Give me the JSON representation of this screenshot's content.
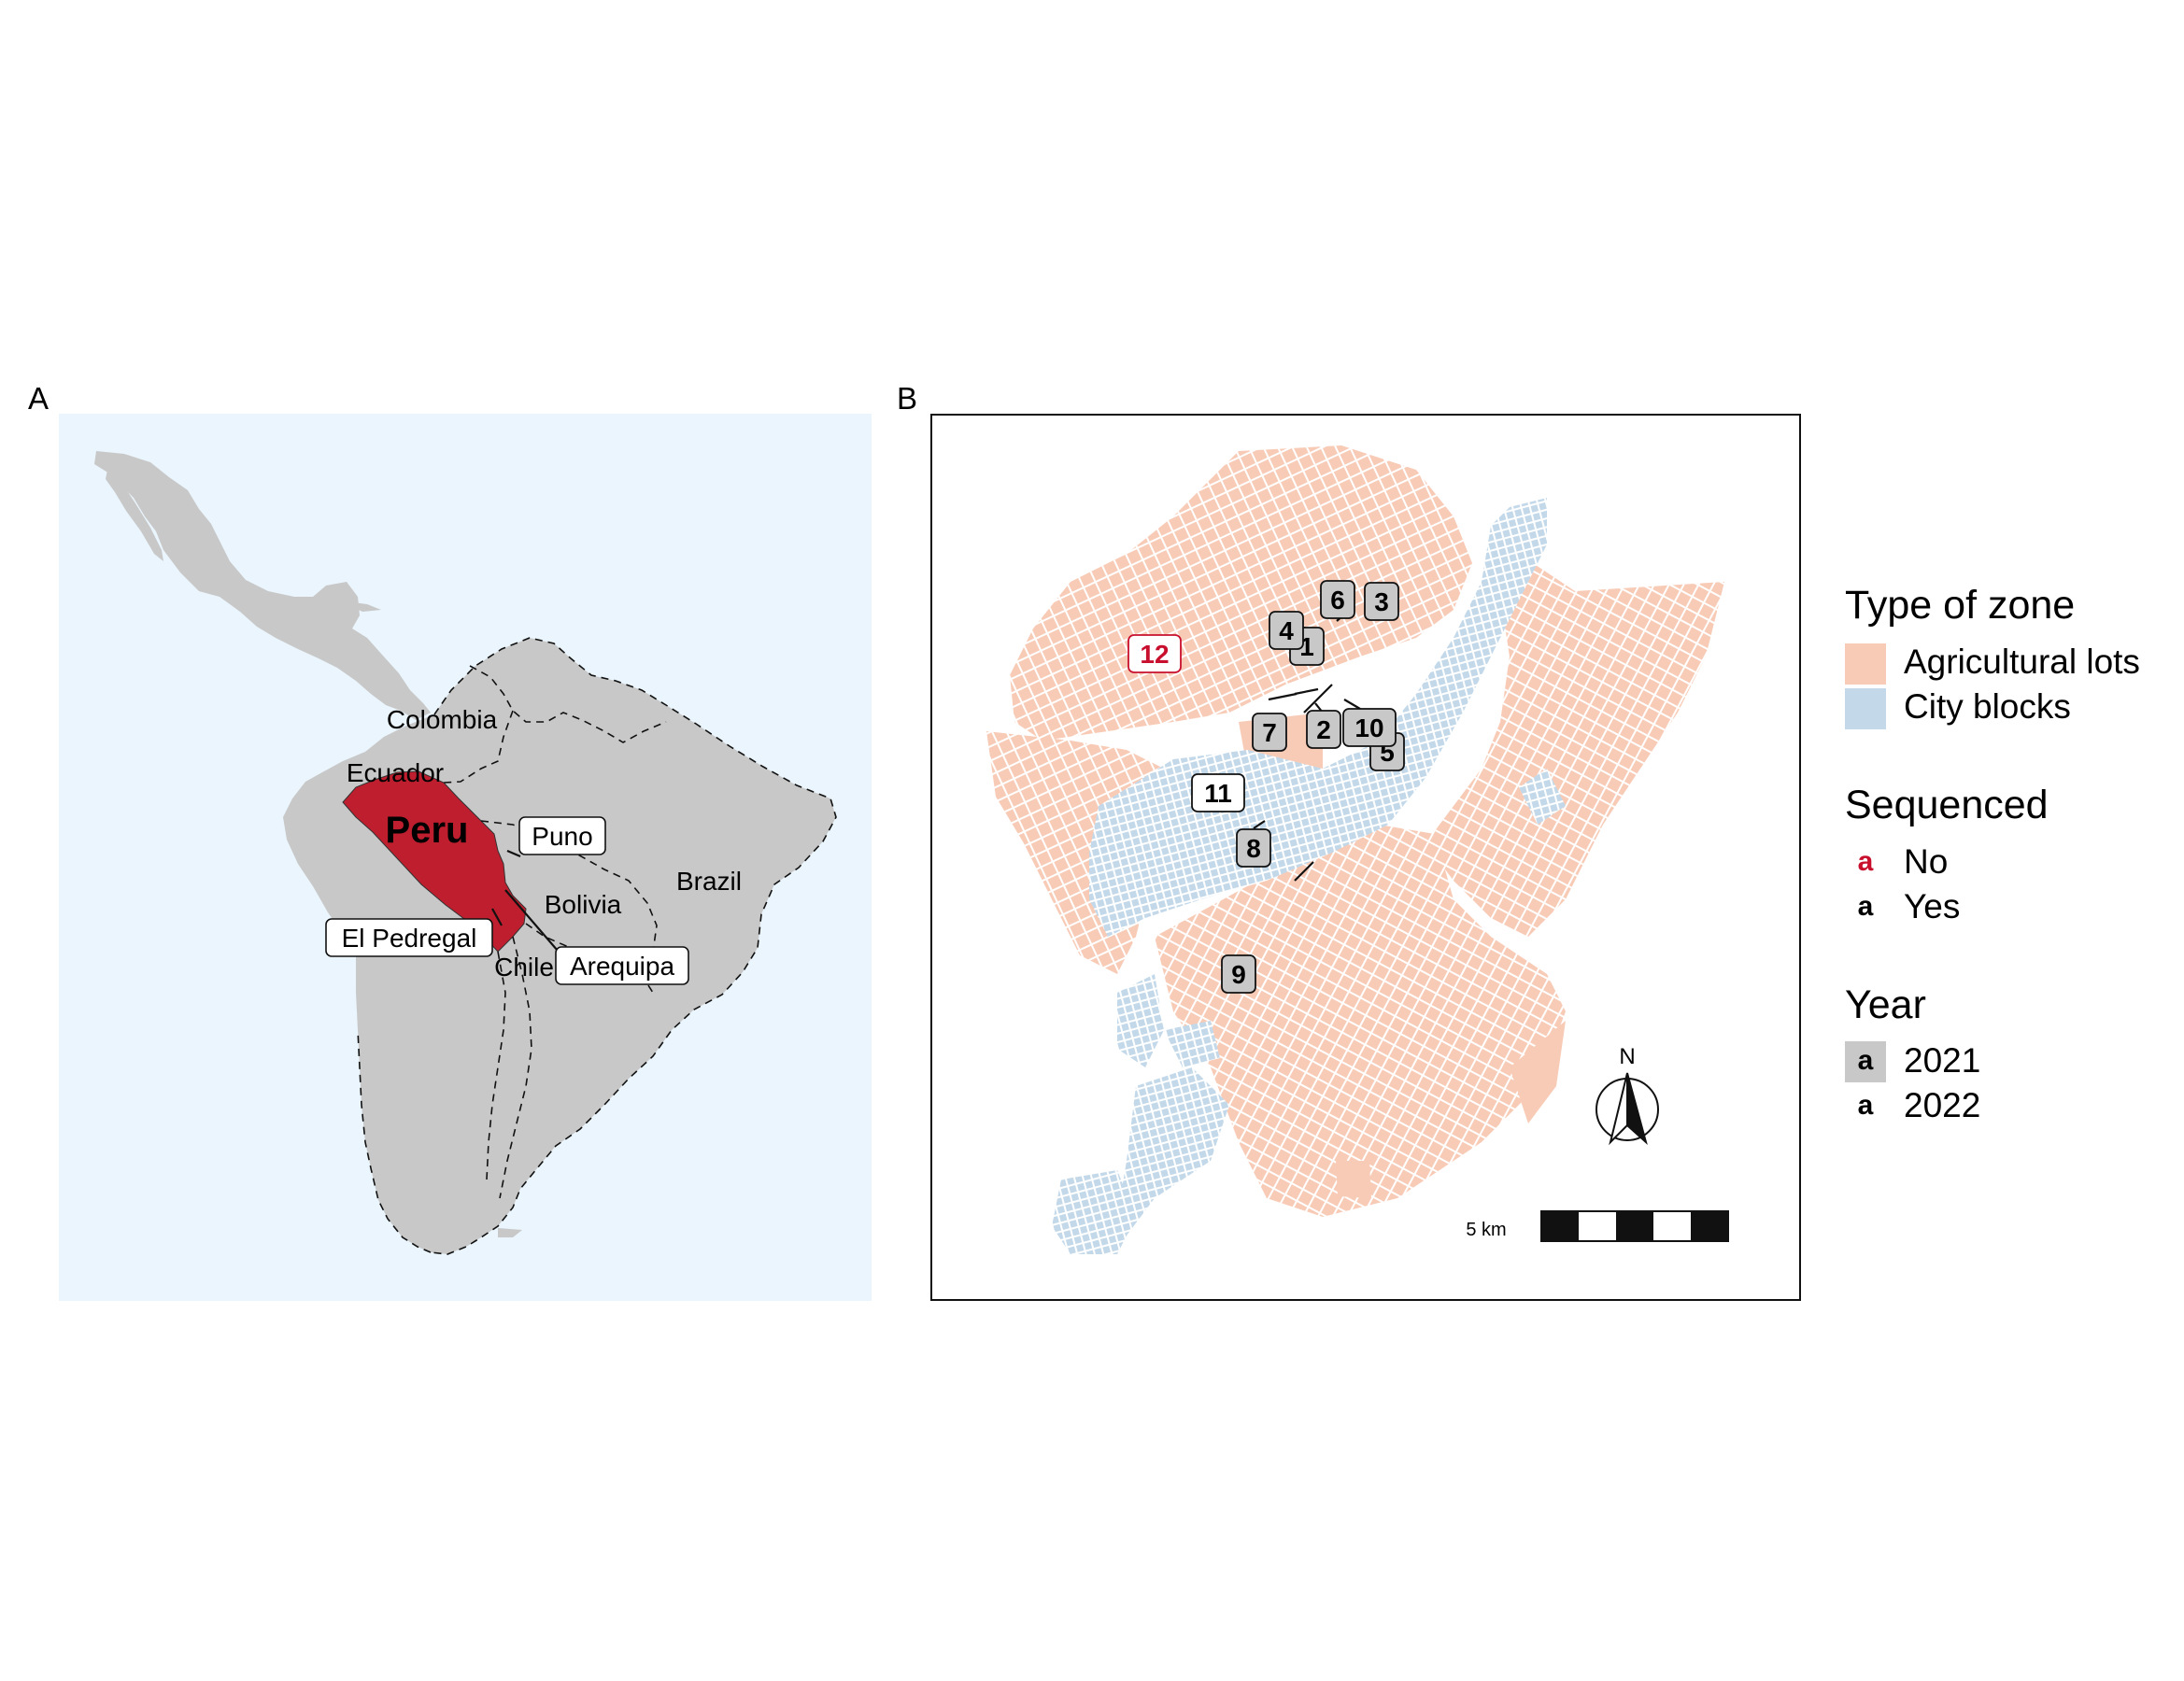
{
  "panel_a": {
    "letter": "A",
    "country_labels": [
      "Colombia",
      "Ecuador",
      "Peru",
      "Bolivia",
      "Brazil",
      "Chile"
    ],
    "site_labels": [
      "Puno",
      "El Pedregal",
      "Arequipa"
    ]
  },
  "panel_b": {
    "letter": "B",
    "site_labels": [
      "1",
      "2",
      "3",
      "4",
      "5",
      "6",
      "7",
      "8",
      "9",
      "10",
      "11",
      "12"
    ],
    "scale_label": "5 km",
    "north_label": "N"
  },
  "legend": {
    "zone": {
      "title": "Type of zone",
      "items": [
        "Agricultural lots",
        "City blocks"
      ]
    },
    "sequenced": {
      "title": "Sequenced",
      "key_letter": "a",
      "items": [
        "No",
        "Yes"
      ]
    },
    "year": {
      "title": "Year",
      "key_letter": "a",
      "items": [
        "2021",
        "2022"
      ]
    }
  },
  "colors": {
    "ocean": "#eaf5fd",
    "land": "#c8c8c8",
    "peru": "#be1e2d",
    "agricultural": "#f8cbb6",
    "city": "#c3d9ea",
    "not_sequenced": "#c8102e",
    "year_2021": "#c8c8c8",
    "year_2022": "#ffffff"
  },
  "sites_b": [
    {
      "label": "1",
      "year": "2021",
      "sequenced": "Yes"
    },
    {
      "label": "2",
      "year": "2021",
      "sequenced": "Yes"
    },
    {
      "label": "3",
      "year": "2021",
      "sequenced": "Yes"
    },
    {
      "label": "4",
      "year": "2021",
      "sequenced": "Yes"
    },
    {
      "label": "5",
      "year": "2021",
      "sequenced": "Yes"
    },
    {
      "label": "6",
      "year": "2021",
      "sequenced": "Yes"
    },
    {
      "label": "7",
      "year": "2021",
      "sequenced": "Yes"
    },
    {
      "label": "8",
      "year": "2021",
      "sequenced": "Yes"
    },
    {
      "label": "9",
      "year": "2021",
      "sequenced": "Yes"
    },
    {
      "label": "10",
      "year": "2021",
      "sequenced": "Yes"
    },
    {
      "label": "11",
      "year": "2022",
      "sequenced": "Yes"
    },
    {
      "label": "12",
      "year": "2022",
      "sequenced": "No"
    }
  ]
}
